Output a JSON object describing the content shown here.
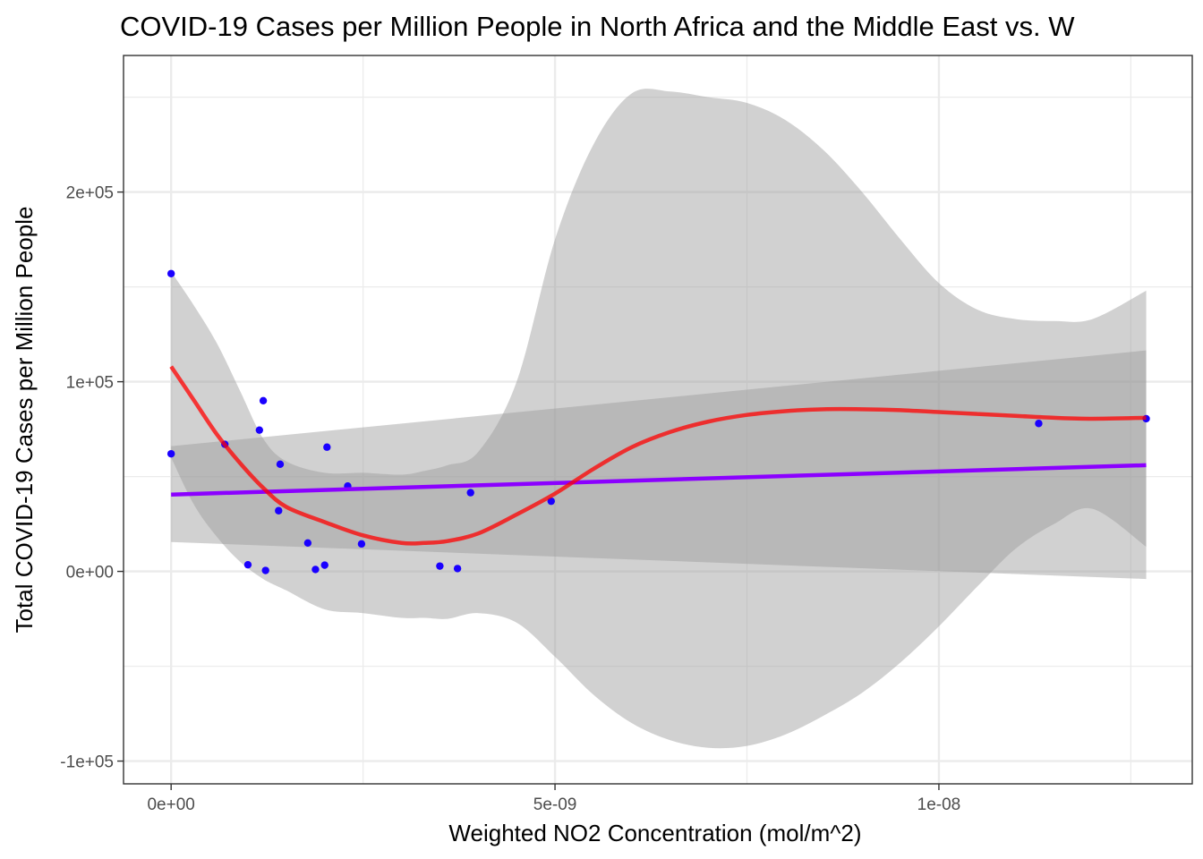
{
  "chart_data": {
    "type": "scatter",
    "title": "COVID-19 Cases per Million People in North Africa and the Middle East vs. W",
    "xlabel": "Weighted NO2 Concentration (mol/m^2)",
    "ylabel": "Total COVID-19 Cases per Million People",
    "xlim": [
      -6.2e-10,
      1.33e-08
    ],
    "ylim": [
      -112000,
      272000
    ],
    "x_ticks": [
      {
        "value": 0,
        "label": "0e+00"
      },
      {
        "value": 5e-09,
        "label": "5e-09"
      },
      {
        "value": 1e-08,
        "label": "1e-08"
      }
    ],
    "y_ticks": [
      {
        "value": -100000,
        "label": "-1e+05"
      },
      {
        "value": 0,
        "label": "0e+00"
      },
      {
        "value": 100000,
        "label": "1e+05"
      },
      {
        "value": 200000,
        "label": "2e+05"
      }
    ],
    "x_minor_grid": [
      2.5e-09,
      7.5e-09,
      1.25e-08
    ],
    "y_minor_grid": [
      -50000,
      50000,
      150000,
      250000
    ],
    "grid": true,
    "colors": {
      "points": "#1A00FF",
      "linear_fit": "#8B00FF",
      "loess_fit": "#FF0000",
      "ribbon": "#999999",
      "panel_border": "#333333",
      "gridline": "#EBEBEB"
    },
    "points": [
      {
        "x": 0.0,
        "y": 157000
      },
      {
        "x": 0.0,
        "y": 62000
      },
      {
        "x": 7e-10,
        "y": 67000
      },
      {
        "x": 1e-09,
        "y": 3500
      },
      {
        "x": 1.15e-09,
        "y": 74500
      },
      {
        "x": 1.2e-09,
        "y": 90000
      },
      {
        "x": 1.23e-09,
        "y": 500
      },
      {
        "x": 1.4e-09,
        "y": 32000
      },
      {
        "x": 1.42e-09,
        "y": 56500
      },
      {
        "x": 1.78e-09,
        "y": 15000
      },
      {
        "x": 1.88e-09,
        "y": 1000
      },
      {
        "x": 2e-09,
        "y": 3300
      },
      {
        "x": 2.03e-09,
        "y": 65500
      },
      {
        "x": 2.3e-09,
        "y": 45000
      },
      {
        "x": 2.48e-09,
        "y": 14500
      },
      {
        "x": 3.5e-09,
        "y": 2800
      },
      {
        "x": 3.73e-09,
        "y": 1500
      },
      {
        "x": 3.9e-09,
        "y": 41500
      },
      {
        "x": 4.95e-09,
        "y": 37000
      },
      {
        "x": 1.13e-08,
        "y": 78000
      },
      {
        "x": 1.27e-08,
        "y": 80500
      }
    ],
    "linear_fit": {
      "x": [
        0.0,
        1.27e-08
      ],
      "y": [
        40500,
        56000
      ],
      "ci_lower": [
        15500,
        -4000
      ],
      "ci_upper": [
        66000,
        116500
      ]
    },
    "loess_fit": {
      "x": [
        0.0,
        3e-10,
        6e-10,
        9e-10,
        1.2e-09,
        1.5e-09,
        2e-09,
        2.5e-09,
        3e-09,
        3.3e-09,
        3.6e-09,
        4e-09,
        4.5e-09,
        5e-09,
        5.5e-09,
        6e-09,
        6.5e-09,
        7e-09,
        7.5e-09,
        8e-09,
        8.5e-09,
        9e-09,
        9.5e-09,
        1e-08,
        1.05e-08,
        1.1e-08,
        1.15e-08,
        1.2e-08,
        1.27e-08
      ],
      "y": [
        108000,
        90000,
        72000,
        57000,
        44000,
        34000,
        26000,
        19000,
        15000,
        15000,
        16000,
        20000,
        30000,
        41000,
        54000,
        65500,
        73500,
        79000,
        82500,
        84500,
        85500,
        85500,
        85000,
        84000,
        83000,
        82000,
        81000,
        80500,
        81000
      ],
      "ci_lower": [
        60000,
        35000,
        18000,
        5000,
        -4000,
        -10000,
        -20000,
        -22000,
        -24500,
        -24500,
        -25000,
        -22000,
        -27000,
        -45000,
        -65000,
        -80000,
        -89000,
        -93000,
        -92000,
        -86000,
        -76000,
        -64000,
        -48000,
        -29000,
        -8000,
        12000,
        25000,
        33000,
        13000
      ],
      "ci_upper": [
        158000,
        140000,
        120000,
        95000,
        70000,
        58000,
        52000,
        52000,
        51000,
        53000,
        56000,
        63000,
        100000,
        175000,
        225000,
        252000,
        253000,
        250000,
        247000,
        238000,
        222000,
        200000,
        175000,
        152000,
        138000,
        133000,
        132000,
        133000,
        148000
      ]
    }
  }
}
